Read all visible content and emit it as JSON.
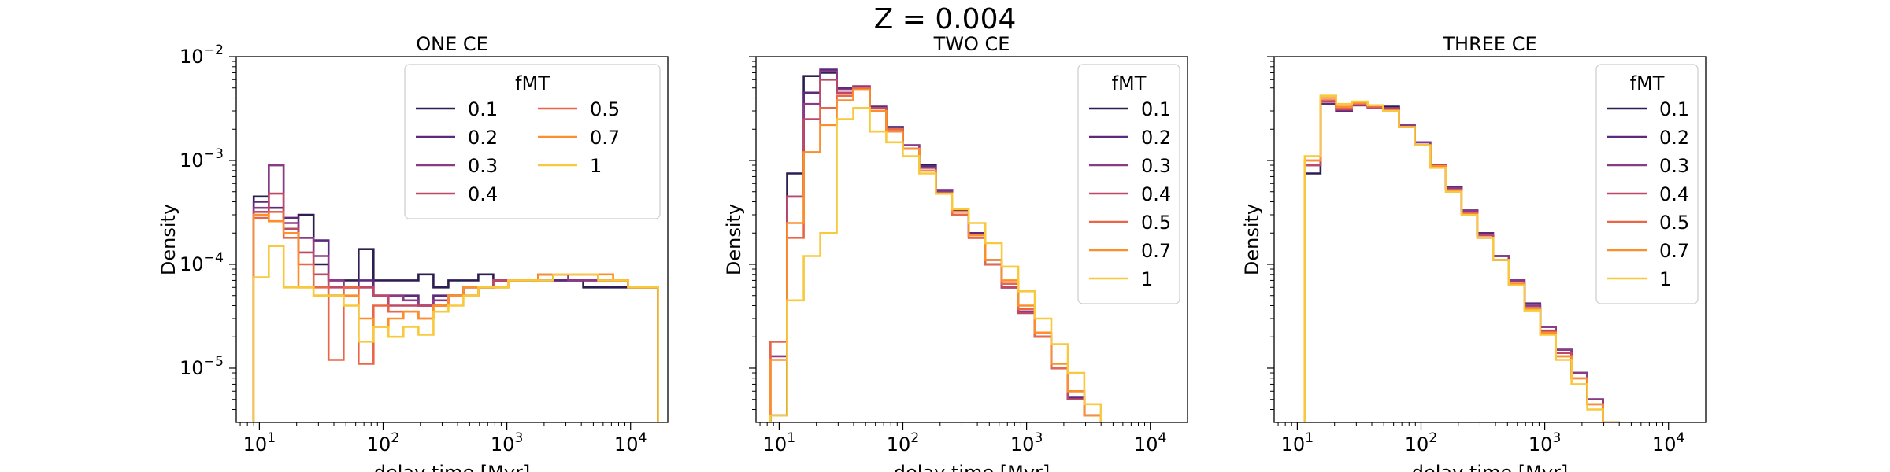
{
  "figure": {
    "suptitle": "Z = 0.004"
  },
  "chart_data": [
    {
      "type": "line",
      "title": "ONE CE",
      "xlabel": "delay time [Myr]",
      "ylabel": "Density",
      "xscale": "log",
      "yscale": "log",
      "xlim": [
        6.5,
        20000
      ],
      "ylim": [
        3e-06,
        0.01
      ],
      "x_ticks": [
        10,
        100,
        1000,
        10000
      ],
      "y_ticks": [
        1e-05,
        0.0001,
        0.001,
        0.01
      ],
      "y_tick_labels_visible": true,
      "legend": {
        "title": "fMT",
        "placement": "top-right",
        "columns": 2
      },
      "bin_edges": [
        9,
        11.9,
        15.7,
        20.7,
        27.4,
        36.2,
        47.9,
        63.3,
        83.6,
        110.5,
        146,
        193,
        255,
        337,
        445,
        588,
        777,
        1027,
        1357,
        1794,
        2371,
        3133,
        4141,
        5472,
        7232,
        9557,
        12630,
        16690
      ],
      "series": [
        {
          "name": "0.1",
          "color": "#2c1e50",
          "values": [
            0.00045,
            0.0009,
            0.00028,
            0.0003,
            0.0001,
            5e-05,
            7e-05,
            0.00014,
            7e-05,
            7e-05,
            7e-05,
            8e-05,
            6e-05,
            7e-05,
            7e-05,
            8e-05,
            7e-05,
            7e-05,
            7e-05,
            8e-05,
            7e-05,
            7e-05,
            6e-05,
            6e-05,
            6e-05,
            6e-05,
            6e-05
          ]
        },
        {
          "name": "0.2",
          "color": "#5b2a7b",
          "values": [
            0.0004,
            0.00035,
            0.00028,
            0.00018,
            0.00017,
            7e-05,
            6e-05,
            7e-05,
            5e-05,
            5e-05,
            5e-05,
            4e-05,
            5e-05,
            5e-05,
            6e-05,
            6e-05,
            7e-05,
            7e-05,
            7e-05,
            7e-05,
            7e-05,
            7e-05,
            7e-05,
            7e-05,
            7e-05,
            6e-05,
            6e-05
          ]
        },
        {
          "name": "0.3",
          "color": "#8b3a86",
          "values": [
            0.00035,
            0.0009,
            0.00025,
            0.00018,
            0.00012,
            7e-05,
            6e-05,
            6e-05,
            5e-05,
            5e-05,
            4.5e-05,
            4e-05,
            4.5e-05,
            5e-05,
            6e-05,
            6e-05,
            7e-05,
            7e-05,
            7e-05,
            8e-05,
            8e-05,
            7e-05,
            7e-05,
            7e-05,
            7e-05,
            6e-05,
            6e-05
          ]
        },
        {
          "name": "0.4",
          "color": "#bd4868",
          "values": [
            0.00032,
            0.00048,
            0.00022,
            0.00013,
            8e-05,
            6e-05,
            6e-05,
            6e-05,
            5e-05,
            4e-05,
            4e-05,
            4e-05,
            4e-05,
            5e-05,
            5e-05,
            6e-05,
            7e-05,
            7e-05,
            7e-05,
            8e-05,
            8e-05,
            8e-05,
            8e-05,
            7e-05,
            7e-05,
            6e-05,
            6e-05
          ]
        },
        {
          "name": "0.5",
          "color": "#ea6648",
          "values": [
            0.00028,
            0.00032,
            0.00018,
            0.0001,
            6e-05,
            1.2e-05,
            6e-05,
            1.1e-05,
            4e-05,
            3.5e-05,
            3.5e-05,
            3e-05,
            4e-05,
            5e-05,
            5e-05,
            6e-05,
            6e-05,
            7e-05,
            7e-05,
            8e-05,
            8e-05,
            8e-05,
            8e-05,
            7e-05,
            7e-05,
            6e-05,
            6e-05
          ]
        },
        {
          "name": "0.7",
          "color": "#fc8f2b",
          "values": [
            0.0003,
            0.00026,
            0.0002,
            6e-05,
            5e-05,
            5e-05,
            5e-05,
            3e-05,
            2.5e-05,
            3e-05,
            3.5e-05,
            3e-05,
            4e-05,
            5e-05,
            6e-05,
            6e-05,
            6e-05,
            7e-05,
            7e-05,
            8e-05,
            8e-05,
            8e-05,
            8e-05,
            8e-05,
            7e-05,
            6e-05,
            6e-05
          ]
        },
        {
          "name": "1",
          "color": "#f8c93c",
          "values": [
            7.5e-05,
            0.00015,
            6e-05,
            6e-05,
            5e-05,
            5e-05,
            4e-05,
            1.8e-05,
            2.5e-05,
            2e-05,
            2.5e-05,
            2.1e-05,
            3.5e-05,
            4e-05,
            5e-05,
            6e-05,
            6e-05,
            7e-05,
            7e-05,
            7e-05,
            8e-05,
            8e-05,
            8e-05,
            7e-05,
            7e-05,
            6e-05,
            6e-05
          ]
        }
      ]
    },
    {
      "type": "line",
      "title": "TWO CE",
      "xlabel": "delay time [Myr]",
      "ylabel": "Density",
      "xscale": "log",
      "yscale": "log",
      "xlim": [
        6.5,
        20000
      ],
      "ylim": [
        3e-06,
        0.01
      ],
      "x_ticks": [
        10,
        100,
        1000,
        10000
      ],
      "y_ticks": [
        1e-05,
        0.0001,
        0.001,
        0.01
      ],
      "y_tick_labels_visible": false,
      "legend": {
        "title": "fMT",
        "placement": "top-right",
        "columns": 1
      },
      "bin_edges": [
        8.5,
        11.6,
        15.8,
        21.5,
        29.2,
        39.7,
        54,
        73.4,
        99.8,
        135.7,
        184.5,
        250.8,
        341,
        463.6,
        630.3,
        857,
        1165,
        1584,
        2154,
        2928,
        3981,
        5413,
        7359,
        10005,
        13600,
        18500
      ],
      "series": [
        {
          "name": "0.1",
          "color": "#2c1e50",
          "values": [
            3.5e-06,
            0.00075,
            0.0065,
            0.007,
            0.0045,
            0.0049,
            0.0032,
            0.0021,
            0.0014,
            0.0009,
            0.0005,
            0.00033,
            0.00019,
            0.0001,
            6e-05,
            3.5e-05,
            2e-05,
            1e-05,
            5e-06,
            3.5e-06
          ]
        },
        {
          "name": "0.2",
          "color": "#5b2a7b",
          "values": [
            3.5e-06,
            0.00045,
            0.0045,
            0.0075,
            0.005,
            0.005,
            0.0033,
            0.0021,
            0.0014,
            0.00088,
            0.00052,
            0.00033,
            0.0002,
            0.00011,
            6e-05,
            3.4e-05,
            2e-05,
            1e-05,
            5.2e-06,
            3.5e-06
          ]
        },
        {
          "name": "0.3",
          "color": "#8b3a86",
          "values": [
            1.3e-05,
            0.00045,
            0.0035,
            0.0072,
            0.0048,
            0.0052,
            0.0032,
            0.002,
            0.0014,
            0.00085,
            0.0005,
            0.0003,
            0.00018,
            0.0001,
            6e-05,
            3.5e-05,
            2e-05,
            1e-05,
            5e-06,
            3.5e-06
          ]
        },
        {
          "name": "0.4",
          "color": "#bd4868",
          "values": [
            1.8e-05,
            0.00045,
            0.0025,
            0.006,
            0.0045,
            0.005,
            0.0032,
            0.002,
            0.0013,
            0.0008,
            0.00048,
            0.0003,
            0.00018,
            0.0001,
            6e-05,
            3.4e-05,
            2e-05,
            1e-05,
            5e-06,
            3.5e-06
          ]
        },
        {
          "name": "0.5",
          "color": "#ea6648",
          "values": [
            1.8e-05,
            0.00018,
            0.0012,
            0.0032,
            0.0042,
            0.005,
            0.003,
            0.002,
            0.0013,
            0.0008,
            0.00048,
            0.0003,
            0.00018,
            0.0001,
            6.5e-05,
            3.7e-05,
            2e-05,
            1e-05,
            6e-06,
            3.5e-06
          ]
        },
        {
          "name": "0.7",
          "color": "#fc8f2b",
          "values": [
            1.2e-05,
            0.00025,
            0.0012,
            0.0022,
            0.0038,
            0.0048,
            0.003,
            0.0019,
            0.0013,
            0.0008,
            0.00048,
            0.00032,
            0.00019,
            0.00011,
            7e-05,
            4e-05,
            2.2e-05,
            1.1e-05,
            6e-06,
            3.5e-06
          ]
        },
        {
          "name": "1",
          "color": "#f8c93c",
          "values": [
            3.5e-06,
            4.5e-05,
            0.00012,
            0.0002,
            0.0025,
            0.0032,
            0.0019,
            0.0015,
            0.0011,
            0.00075,
            0.00048,
            0.00034,
            0.00025,
            0.00016,
            9.5e-05,
            5.5e-05,
            3e-05,
            1.7e-05,
            9e-06,
            4.5e-06
          ]
        }
      ]
    },
    {
      "type": "line",
      "title": "THREE CE",
      "xlabel": "delay time [Myr]",
      "ylabel": "Density",
      "xscale": "log",
      "yscale": "log",
      "xlim": [
        6.5,
        20000
      ],
      "ylim": [
        3e-06,
        0.01
      ],
      "x_ticks": [
        10,
        100,
        1000,
        10000
      ],
      "y_ticks": [
        1e-05,
        0.0001,
        0.001,
        0.01
      ],
      "y_tick_labels_visible": false,
      "legend": {
        "title": "fMT",
        "placement": "top-right",
        "columns": 1
      },
      "bin_edges": [
        11.5,
        15.4,
        20.6,
        27.6,
        37,
        49.5,
        66.3,
        88.8,
        118.9,
        159.2,
        213.2,
        285.5,
        382.3,
        512,
        685.6,
        918.1,
        1229,
        1646,
        2205,
        2952,
        3953,
        5294,
        7089,
        9493,
        12710
      ],
      "series": [
        {
          "name": "0.1",
          "color": "#2c1e50",
          "values": [
            0.00075,
            0.0035,
            0.003,
            0.0035,
            0.0033,
            0.0033,
            0.0022,
            0.0015,
            0.0009,
            0.00055,
            0.00033,
            0.00019,
            0.00012,
            7e-05,
            4e-05,
            2.5e-05,
            1.5e-05,
            9e-06,
            5e-06,
            3e-06
          ]
        },
        {
          "name": "0.2",
          "color": "#5b2a7b",
          "values": [
            0.0009,
            0.0035,
            0.003,
            0.0034,
            0.0033,
            0.0032,
            0.0022,
            0.0015,
            0.0009,
            0.00055,
            0.00033,
            0.0002,
            0.00012,
            7e-05,
            4.2e-05,
            2.5e-05,
            1.5e-05,
            9e-06,
            5e-06,
            3e-06
          ]
        },
        {
          "name": "0.3",
          "color": "#8b3a86",
          "values": [
            0.0009,
            0.0037,
            0.0031,
            0.0034,
            0.0033,
            0.0032,
            0.0022,
            0.0015,
            0.0009,
            0.00054,
            0.00033,
            0.00019,
            0.00012,
            7e-05,
            4e-05,
            2.5e-05,
            1.5e-05,
            9e-06,
            5e-06,
            3e-06
          ]
        },
        {
          "name": "0.4",
          "color": "#bd4868",
          "values": [
            0.0009,
            0.0037,
            0.0031,
            0.0035,
            0.0032,
            0.0031,
            0.0021,
            0.0014,
            0.0009,
            0.00052,
            0.00031,
            0.00019,
            0.00011,
            6.5e-05,
            3.8e-05,
            2.3e-05,
            1.4e-05,
            8e-06,
            4.5e-06,
            3e-06
          ]
        },
        {
          "name": "0.5",
          "color": "#ea6648",
          "values": [
            0.001,
            0.0038,
            0.0032,
            0.0035,
            0.0033,
            0.0031,
            0.0021,
            0.0014,
            0.00088,
            0.00052,
            0.00031,
            0.00018,
            0.00011,
            6.5e-05,
            3.8e-05,
            2.2e-05,
            1.3e-05,
            8e-06,
            4.5e-06,
            3e-06
          ]
        },
        {
          "name": "0.7",
          "color": "#fc8f2b",
          "values": [
            0.001,
            0.004,
            0.0033,
            0.0036,
            0.0034,
            0.003,
            0.0021,
            0.0014,
            0.00088,
            0.0005,
            0.0003,
            0.00018,
            0.00011,
            6.5e-05,
            3.7e-05,
            2.2e-05,
            1.3e-05,
            8e-06,
            4.5e-06,
            3e-06
          ]
        },
        {
          "name": "1",
          "color": "#f8c93c",
          "values": [
            0.0011,
            0.0042,
            0.0035,
            0.0037,
            0.0034,
            0.003,
            0.0021,
            0.0014,
            0.00085,
            0.0005,
            0.0003,
            0.00018,
            0.00011,
            6.3e-05,
            3.6e-05,
            2.1e-05,
            1.2e-05,
            7e-06,
            4e-06,
            3e-06
          ]
        }
      ]
    }
  ]
}
